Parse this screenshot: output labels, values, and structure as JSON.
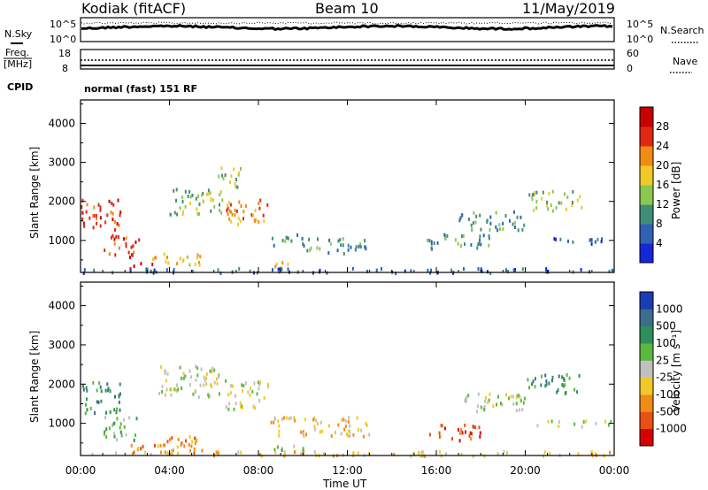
{
  "header": {
    "radar": "Kodiak (fitACF)",
    "beam": "Beam 10",
    "date": "11/May/2019"
  },
  "summary": {
    "nsky_label": "N.Sky",
    "nsky_ticks": [
      "10^5",
      "10^0"
    ],
    "nsearch_label": "N.Search",
    "nsearch_ticks": [
      "10^5",
      "10^0"
    ],
    "freq_label_line1": "Freq.",
    "freq_label_line2": "[MHz]",
    "freq_ticks": [
      "18",
      "8"
    ],
    "nave_label": "Nave",
    "nave_ticks": [
      "60",
      "0"
    ],
    "cpid_label": "CPID",
    "cpid_value": "normal (fast) 151 RF"
  },
  "chart_data": [
    {
      "type": "heatmap",
      "name": "power-panel",
      "ylabel": "Slant Range [km]",
      "yticks": [
        1000,
        2000,
        3000,
        4000
      ],
      "ylim": [
        180,
        4600
      ],
      "xticks": [
        "00:00",
        "04:00",
        "08:00",
        "12:00",
        "16:00",
        "20:00",
        "00:00"
      ],
      "xlim_hours": [
        0,
        24
      ],
      "colorbar": {
        "label": "Power [dB]",
        "ticks": [
          "4",
          "8",
          "12",
          "16",
          "20",
          "24",
          "28"
        ],
        "colors": [
          "#1428d8",
          "#2f62b4",
          "#3f8f78",
          "#8cc850",
          "#f0c828",
          "#f08c14",
          "#e02814",
          "#c80000"
        ]
      },
      "echo_regions": [
        {
          "t": [
            0.0,
            1.8
          ],
          "r": [
            1300,
            2100
          ],
          "level": 6
        },
        {
          "t": [
            1.0,
            2.6
          ],
          "r": [
            600,
            1200
          ],
          "level": 6
        },
        {
          "t": [
            2.2,
            3.2
          ],
          "r": [
            250,
            450
          ],
          "level": 7
        },
        {
          "t": [
            3.0,
            5.5
          ],
          "r": [
            400,
            700
          ],
          "level": 4
        },
        {
          "t": [
            4.0,
            6.5
          ],
          "r": [
            1700,
            2400
          ],
          "level": 3
        },
        {
          "t": [
            6.5,
            8.5
          ],
          "r": [
            1400,
            2100
          ],
          "level": 5
        },
        {
          "t": [
            6.0,
            7.2
          ],
          "r": [
            2400,
            2900
          ],
          "level": 3
        },
        {
          "t": [
            8.5,
            10.0
          ],
          "r": [
            900,
            1200
          ],
          "level": 2
        },
        {
          "t": [
            10.0,
            13.0
          ],
          "r": [
            700,
            1100
          ],
          "level": 2
        },
        {
          "t": [
            8.5,
            9.5
          ],
          "r": [
            300,
            500
          ],
          "level": 5
        },
        {
          "t": [
            15.5,
            18.5
          ],
          "r": [
            800,
            1200
          ],
          "level": 2
        },
        {
          "t": [
            17.0,
            20.0
          ],
          "r": [
            1300,
            1800
          ],
          "level": 2
        },
        {
          "t": [
            20.0,
            22.5
          ],
          "r": [
            1800,
            2300
          ],
          "level": 3
        },
        {
          "t": [
            20.5,
            24.0
          ],
          "r": [
            950,
            1100
          ],
          "level": 1
        },
        {
          "t": [
            0.0,
            24.0
          ],
          "r": [
            200,
            320
          ],
          "level": 1
        }
      ]
    },
    {
      "type": "heatmap",
      "name": "velocity-panel",
      "ylabel": "Slant Range [km]",
      "yticks": [
        1000,
        2000,
        3000,
        4000
      ],
      "ylim": [
        180,
        4600
      ],
      "xticks": [
        "00:00",
        "04:00",
        "08:00",
        "12:00",
        "16:00",
        "20:00",
        "00:00"
      ],
      "xlim_hours": [
        0,
        24
      ],
      "xlabel": "Time UT",
      "colorbar": {
        "label": "Velocity [m s⁻¹]",
        "ticks": [
          "1000",
          "500",
          "100",
          "25",
          "-25",
          "-100",
          "-500",
          "-1000"
        ],
        "colors": [
          "#1a3cb4",
          "#3c6e8c",
          "#2f8f5a",
          "#5ab83c",
          "#c0c0c0",
          "#f0c828",
          "#f08c14",
          "#e85014",
          "#d80000"
        ]
      },
      "echo_regions": [
        {
          "t": [
            0.0,
            1.8
          ],
          "r": [
            1300,
            2100
          ],
          "level": 2
        },
        {
          "t": [
            1.0,
            2.6
          ],
          "r": [
            600,
            1200
          ],
          "level": 3
        },
        {
          "t": [
            2.2,
            5.5
          ],
          "r": [
            250,
            700
          ],
          "level": 6
        },
        {
          "t": [
            3.5,
            6.5
          ],
          "r": [
            1700,
            2500
          ],
          "level": 4
        },
        {
          "t": [
            6.5,
            8.5
          ],
          "r": [
            1400,
            2100
          ],
          "level": 4
        },
        {
          "t": [
            8.5,
            13.0
          ],
          "r": [
            700,
            1200
          ],
          "level": 5
        },
        {
          "t": [
            8.5,
            10.0
          ],
          "r": [
            300,
            500
          ],
          "level": 3
        },
        {
          "t": [
            15.5,
            18.0
          ],
          "r": [
            600,
            1000
          ],
          "level": 7
        },
        {
          "t": [
            17.0,
            20.0
          ],
          "r": [
            1300,
            1800
          ],
          "level": 4
        },
        {
          "t": [
            20.0,
            22.5
          ],
          "r": [
            1800,
            2300
          ],
          "level": 2
        },
        {
          "t": [
            20.5,
            24.0
          ],
          "r": [
            950,
            1100
          ],
          "level": 4
        },
        {
          "t": [
            0.0,
            24.0
          ],
          "r": [
            200,
            320
          ],
          "level": 5
        }
      ]
    }
  ]
}
